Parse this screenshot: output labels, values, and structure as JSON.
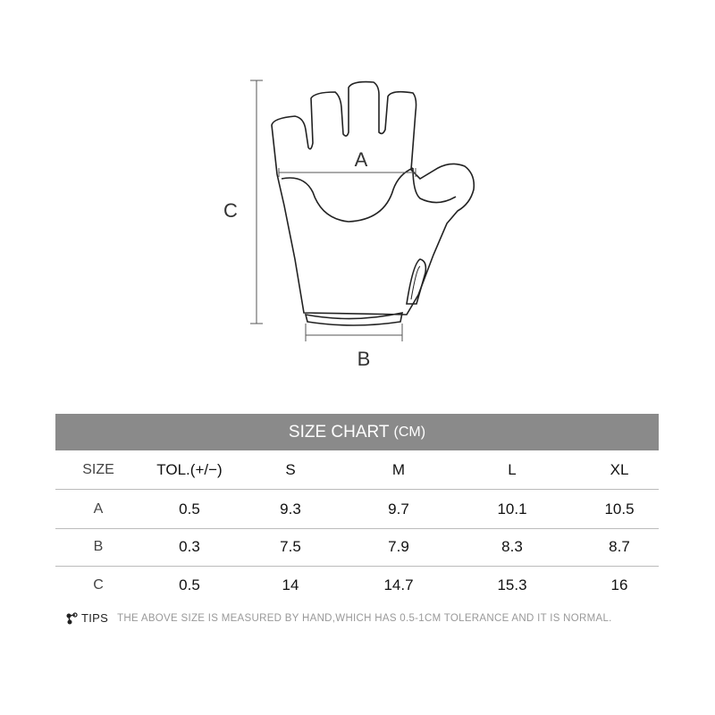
{
  "diagram": {
    "label_a": "A",
    "label_b": "B",
    "label_c": "C"
  },
  "chart": {
    "title": "SIZE CHART",
    "unit": "(CM)",
    "headers": [
      "SIZE",
      "TOL.(+/−)",
      "S",
      "M",
      "L",
      "XL"
    ],
    "rows": [
      [
        "A",
        "0.5",
        "9.3",
        "9.7",
        "10.1",
        "10.5"
      ],
      [
        "B",
        "0.3",
        "7.5",
        "7.9",
        "8.3",
        "8.7"
      ],
      [
        "C",
        "0.5",
        "14",
        "14.7",
        "15.3",
        "16"
      ]
    ]
  },
  "tips": {
    "icon": "share-icon",
    "label": "TIPS",
    "text": "THE ABOVE SIZE IS MEASURED BY HAND,WHICH HAS 0.5-1CM TOLERANCE AND IT IS NORMAL."
  }
}
